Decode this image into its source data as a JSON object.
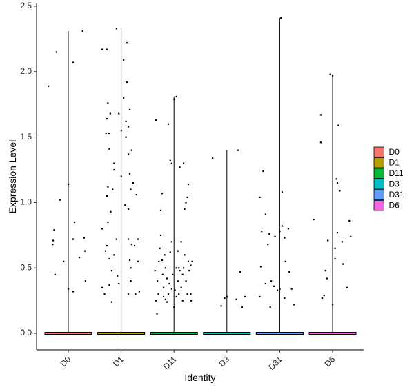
{
  "chart_data": {
    "type": "scatter",
    "subtype": "violin-with-jittered-points",
    "xlabel": "Identity",
    "ylabel": "Expression Level",
    "categories": [
      "D0",
      "D1",
      "D11",
      "D3",
      "D31",
      "D6"
    ],
    "ylim": [
      -0.12,
      2.5
    ],
    "yticks": [
      "0.0",
      "0.5",
      "1.0",
      "1.5",
      "2.0",
      "2.5"
    ],
    "grid": false,
    "legend_position": "right",
    "legend": [
      {
        "name": "D0",
        "color": "#F8766D"
      },
      {
        "name": "D1",
        "color": "#B79F00"
      },
      {
        "name": "D11",
        "color": "#00BA38"
      },
      {
        "name": "D3",
        "color": "#00BFC4"
      },
      {
        "name": "D31",
        "color": "#619CFF"
      },
      {
        "name": "D6",
        "color": "#F564E3"
      }
    ],
    "violin_max": {
      "D0": 2.31,
      "D1": 2.33,
      "D11": 1.81,
      "D3": 1.4,
      "D31": 2.41,
      "D6": 1.98
    },
    "points": {
      "D0": [
        [
          -0.42,
          1.89
        ],
        [
          -0.25,
          2.15
        ],
        [
          -0.32,
          0.71
        ],
        [
          -0.33,
          0.68
        ],
        [
          -0.3,
          0.79
        ],
        [
          -0.28,
          0.45
        ],
        [
          -0.18,
          1.02
        ],
        [
          -0.1,
          0.55
        ],
        [
          0.0,
          1.14
        ],
        [
          0.0,
          0.34
        ],
        [
          0.1,
          2.07
        ],
        [
          0.13,
          0.85
        ],
        [
          0.1,
          0.72
        ],
        [
          0.1,
          0.32
        ],
        [
          0.23,
          0.58
        ],
        [
          0.3,
          2.31
        ],
        [
          0.33,
          0.73
        ],
        [
          0.35,
          0.63
        ],
        [
          0.36,
          0.4
        ]
      ],
      "D1": [
        [
          -0.4,
          2.17
        ],
        [
          -0.3,
          2.17
        ],
        [
          -0.4,
          0.8
        ],
        [
          -0.32,
          1.53
        ],
        [
          -0.3,
          1.64
        ],
        [
          -0.28,
          1.76
        ],
        [
          -0.23,
          1.68
        ],
        [
          -0.26,
          1.53
        ],
        [
          -0.25,
          1.41
        ],
        [
          -0.28,
          1.12
        ],
        [
          -0.3,
          1.05
        ],
        [
          -0.33,
          0.63
        ],
        [
          -0.3,
          0.67
        ],
        [
          -0.25,
          0.57
        ],
        [
          -0.2,
          0.48
        ],
        [
          -0.4,
          0.35
        ],
        [
          -0.35,
          0.3
        ],
        [
          -0.25,
          0.37
        ],
        [
          -0.2,
          0.24
        ],
        [
          -0.28,
          0.85
        ],
        [
          -0.22,
          0.93
        ],
        [
          -0.18,
          1.1
        ],
        [
          -0.15,
          1.25
        ],
        [
          -0.1,
          2.33
        ],
        [
          -0.05,
          1.68
        ],
        [
          -0.15,
          1.3
        ],
        [
          -0.1,
          0.72
        ],
        [
          -0.08,
          0.44
        ],
        [
          -0.05,
          0.38
        ],
        [
          -0.15,
          0.6
        ],
        [
          0.0,
          1.55
        ],
        [
          0.0,
          1.2
        ],
        [
          0.05,
          2.09
        ],
        [
          0.05,
          1.8
        ],
        [
          0.08,
          0.98
        ],
        [
          0.1,
          1.62
        ],
        [
          0.1,
          1.5
        ],
        [
          0.12,
          2.22
        ],
        [
          0.12,
          1.92
        ],
        [
          0.15,
          1.58
        ],
        [
          0.15,
          1.37
        ],
        [
          0.18,
          1.71
        ],
        [
          0.18,
          1.22
        ],
        [
          0.2,
          1.1
        ],
        [
          0.22,
          1.4
        ],
        [
          0.22,
          0.68
        ],
        [
          0.2,
          0.5
        ],
        [
          0.18,
          0.56
        ],
        [
          0.15,
          0.72
        ],
        [
          0.15,
          0.3
        ],
        [
          0.2,
          0.4
        ],
        [
          0.25,
          1.15
        ],
        [
          0.28,
          0.67
        ],
        [
          0.3,
          0.3
        ],
        [
          0.32,
          1.06
        ],
        [
          0.35,
          0.72
        ],
        [
          0.35,
          0.55
        ],
        [
          0.38,
          0.32
        ],
        [
          0.15,
          0.95
        ],
        [
          0.2,
          0.4
        ]
      ],
      "D11": [
        [
          -0.38,
          1.63
        ],
        [
          -0.4,
          0.48
        ],
        [
          -0.35,
          0.4
        ],
        [
          -0.33,
          0.3
        ],
        [
          -0.38,
          0.25
        ],
        [
          -0.36,
          0.15
        ],
        [
          -0.32,
          0.55
        ],
        [
          -0.3,
          0.65
        ],
        [
          -0.28,
          0.75
        ],
        [
          -0.28,
          0.94
        ],
        [
          -0.25,
          1.07
        ],
        [
          -0.25,
          0.56
        ],
        [
          -0.24,
          0.45
        ],
        [
          -0.22,
          0.35
        ],
        [
          -0.22,
          0.28
        ],
        [
          -0.2,
          0.6
        ],
        [
          -0.18,
          0.5
        ],
        [
          -0.15,
          0.42
        ],
        [
          -0.15,
          0.24
        ],
        [
          -0.12,
          0.3
        ],
        [
          -0.12,
          1.6
        ],
        [
          -0.1,
          0.38
        ],
        [
          -0.08,
          0.62
        ],
        [
          -0.08,
          1.32
        ],
        [
          -0.05,
          1.3
        ],
        [
          -0.05,
          0.7
        ],
        [
          -0.03,
          0.45
        ],
        [
          0.0,
          0.2
        ],
        [
          0.0,
          1.79
        ],
        [
          0.02,
          0.33
        ],
        [
          0.05,
          0.5
        ],
        [
          0.05,
          1.81
        ],
        [
          0.08,
          0.63
        ],
        [
          0.08,
          0.4
        ],
        [
          0.1,
          0.3
        ],
        [
          0.12,
          1.27
        ],
        [
          0.12,
          0.48
        ],
        [
          0.15,
          0.7
        ],
        [
          0.15,
          0.35
        ],
        [
          0.18,
          0.25
        ],
        [
          0.2,
          1.3
        ],
        [
          0.2,
          0.5
        ],
        [
          0.22,
          0.95
        ],
        [
          0.22,
          0.6
        ],
        [
          0.25,
          1.0
        ],
        [
          0.25,
          0.4
        ],
        [
          0.28,
          1.04
        ],
        [
          0.28,
          0.3
        ],
        [
          0.3,
          1.14
        ],
        [
          0.3,
          0.55
        ],
        [
          0.32,
          0.48
        ],
        [
          0.35,
          0.52
        ],
        [
          0.35,
          0.3
        ],
        [
          0.38,
          0.55
        ],
        [
          0.36,
          0.25
        ],
        [
          -0.05,
          0.34
        ],
        [
          0.05,
          0.28
        ],
        [
          0.18,
          0.45
        ],
        [
          -0.18,
          0.26
        ],
        [
          0.1,
          0.5
        ]
      ],
      "D3": [
        [
          -0.3,
          1.34
        ],
        [
          -0.12,
          0.21
        ],
        [
          -0.05,
          0.27
        ],
        [
          0.0,
          0.28
        ],
        [
          0.2,
          0.26
        ],
        [
          0.23,
          1.4
        ],
        [
          0.28,
          0.47
        ],
        [
          0.32,
          0.2
        ],
        [
          0.38,
          0.28
        ]
      ],
      "D31": [
        [
          -0.42,
          0.28
        ],
        [
          -0.42,
          1.04
        ],
        [
          -0.4,
          0.51
        ],
        [
          -0.35,
          1.24
        ],
        [
          -0.38,
          0.78
        ],
        [
          -0.3,
          0.91
        ],
        [
          -0.3,
          0.38
        ],
        [
          -0.25,
          0.68
        ],
        [
          -0.22,
          0.76
        ],
        [
          -0.2,
          0.2
        ],
        [
          -0.18,
          0.4
        ],
        [
          -0.12,
          0.36
        ],
        [
          -0.1,
          0.74
        ],
        [
          -0.05,
          0.33
        ],
        [
          0.0,
          0.34
        ],
        [
          0.0,
          0.78
        ],
        [
          0.02,
          2.41
        ],
        [
          0.05,
          1.08
        ],
        [
          0.05,
          0.82
        ],
        [
          0.1,
          0.73
        ],
        [
          0.12,
          0.55
        ],
        [
          0.18,
          0.8
        ],
        [
          0.2,
          0.47
        ],
        [
          0.25,
          0.34
        ],
        [
          0.3,
          0.22
        ],
        [
          0.1,
          0.27
        ]
      ],
      "D6": [
        [
          -0.4,
          0.87
        ],
        [
          -0.25,
          1.67
        ],
        [
          -0.25,
          1.46
        ],
        [
          -0.22,
          0.27
        ],
        [
          -0.18,
          0.29
        ],
        [
          -0.15,
          0.48
        ],
        [
          -0.12,
          0.42
        ],
        [
          -0.1,
          0.71
        ],
        [
          -0.05,
          1.98
        ],
        [
          0.0,
          1.97
        ],
        [
          0.0,
          0.22
        ],
        [
          0.05,
          0.57
        ],
        [
          0.05,
          0.65
        ],
        [
          0.08,
          1.18
        ],
        [
          0.1,
          1.15
        ],
        [
          0.1,
          0.77
        ],
        [
          0.12,
          1.59
        ],
        [
          0.15,
          1.09
        ],
        [
          0.2,
          0.7
        ],
        [
          0.22,
          0.53
        ],
        [
          0.3,
          0.35
        ],
        [
          0.35,
          0.86
        ],
        [
          0.38,
          0.74
        ]
      ]
    }
  }
}
